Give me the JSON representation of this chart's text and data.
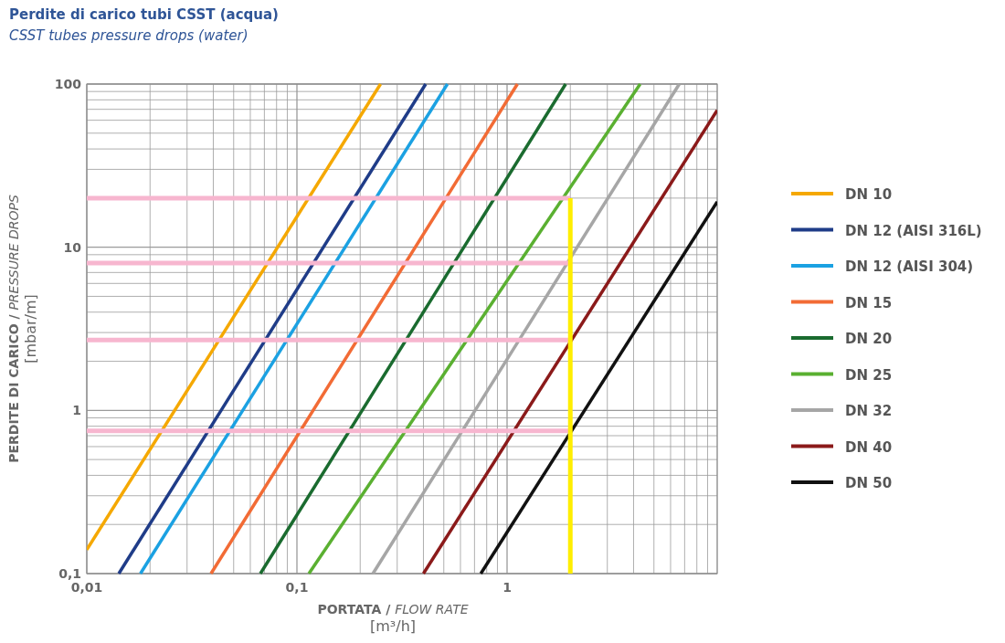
{
  "chart_data": {
    "type": "line",
    "title": "Perdite di carico tubi CSST (acqua)",
    "subtitle": "CSST tubes pressure drops (water)",
    "xlabel": "PORTATA / FLOW RATE\n[m³/h]",
    "ylabel": "PERDITE DI CARICO / PRESSURE DROPS\n[mbar/m]",
    "log": "xy",
    "grid": true,
    "legend": "right",
    "line_style": "solid",
    "marker": "none",
    "xlim": [
      0.01,
      10
    ],
    "ylim": [
      0.1,
      100
    ],
    "xticks": [
      {
        "value": 0.01,
        "label": "0,01"
      },
      {
        "value": 0.02,
        "label": null
      },
      {
        "value": 0.03,
        "label": null
      },
      {
        "value": 0.04,
        "label": null
      },
      {
        "value": 0.05,
        "label": null
      },
      {
        "value": 0.06,
        "label": null
      },
      {
        "value": 0.07,
        "label": null
      },
      {
        "value": 0.08,
        "label": null
      },
      {
        "value": 0.09,
        "label": null
      },
      {
        "value": 0.1,
        "label": "0,1"
      },
      {
        "value": 0.2,
        "label": null
      },
      {
        "value": 0.3,
        "label": null
      },
      {
        "value": 0.4,
        "label": null
      },
      {
        "value": 0.5,
        "label": null
      },
      {
        "value": 0.6,
        "label": null
      },
      {
        "value": 0.7,
        "label": null
      },
      {
        "value": 0.8,
        "label": null
      },
      {
        "value": 0.9,
        "label": null
      },
      1,
      {
        "value": 2,
        "label": null
      },
      {
        "value": 3,
        "label": null
      },
      {
        "value": 4,
        "label": null
      },
      {
        "value": 5,
        "label": null
      },
      {
        "value": 6,
        "label": null
      },
      {
        "value": 7,
        "label": null
      },
      {
        "value": 8,
        "label": null
      },
      {
        "value": 9,
        "label": null
      },
      {
        "value": 10,
        "label": null
      }
    ],
    "yticks": [
      {
        "value": 0.1,
        "label": "0,1"
      },
      {
        "value": 0.2,
        "label": null
      },
      {
        "value": 0.3,
        "label": null
      },
      {
        "value": 0.4,
        "label": null
      },
      {
        "value": 0.5,
        "label": null
      },
      {
        "value": 0.6,
        "label": null
      },
      {
        "value": 0.7,
        "label": null
      },
      {
        "value": 0.8,
        "label": null
      },
      {
        "value": 0.9,
        "label": null
      },
      1,
      {
        "value": 2,
        "label": null
      },
      {
        "value": 3,
        "label": null
      },
      {
        "value": 4,
        "label": null
      },
      {
        "value": 5,
        "label": null
      },
      {
        "value": 6,
        "label": null
      },
      {
        "value": 7,
        "label": null
      },
      {
        "value": 8,
        "label": null
      },
      {
        "value": 9,
        "label": null
      },
      10,
      {
        "value": 20,
        "label": null
      },
      {
        "value": 30,
        "label": null
      },
      {
        "value": 40,
        "label": null
      },
      {
        "value": 50,
        "label": null
      },
      {
        "value": 60,
        "label": null
      },
      {
        "value": 70,
        "label": null
      },
      {
        "value": 80,
        "label": null
      },
      {
        "value": 90,
        "label": null
      },
      100
    ],
    "series": [
      {
        "name": "DN 10",
        "color": "#f5a800",
        "x": [
          0.01,
          0.25
        ],
        "values": [
          0.14,
          100
        ]
      },
      {
        "name": "DN 12 (AISI 316L)",
        "color": "#1f3c88",
        "x": [
          0.0142,
          0.41
        ],
        "values": [
          0.1,
          100
        ]
      },
      {
        "name": "DN 12 (AISI 304)",
        "color": "#1ba1e2",
        "x": [
          0.018,
          0.52
        ],
        "values": [
          0.1,
          100
        ]
      },
      {
        "name": "DN 15",
        "color": "#f26b35",
        "x": [
          0.039,
          1.12
        ],
        "values": [
          0.1,
          100
        ]
      },
      {
        "name": "DN 20",
        "color": "#1a6b2f",
        "x": [
          0.067,
          1.9
        ],
        "values": [
          0.1,
          100
        ]
      },
      {
        "name": "DN 25",
        "color": "#5ab031",
        "x": [
          0.114,
          4.3
        ],
        "values": [
          0.1,
          100
        ]
      },
      {
        "name": "DN 32",
        "color": "#a6a6a6",
        "x": [
          0.23,
          6.6
        ],
        "values": [
          0.1,
          100
        ]
      },
      {
        "name": "DN 40",
        "color": "#8b1a1a",
        "x": [
          0.4,
          10
        ],
        "values": [
          0.1,
          69
        ]
      },
      {
        "name": "DN 50",
        "color": "#111111",
        "x": [
          0.75,
          10
        ],
        "values": [
          0.1,
          19
        ]
      },
      {
        "color": "#f7b6cf",
        "x": [
          0.01,
          2
        ],
        "values": [
          20,
          20
        ]
      },
      {
        "color": "#f7b6cf",
        "x": [
          0.01,
          2
        ],
        "values": [
          8,
          8
        ]
      },
      {
        "color": "#f7b6cf",
        "x": [
          0.01,
          2
        ],
        "values": [
          2.7,
          2.7
        ]
      },
      {
        "color": "#f7b6cf",
        "x": [
          0.01,
          2
        ],
        "values": [
          0.75,
          0.75
        ]
      },
      {
        "color": "#ffee00",
        "x": [
          2,
          2
        ],
        "values": [
          0.1,
          20
        ]
      }
    ]
  }
}
